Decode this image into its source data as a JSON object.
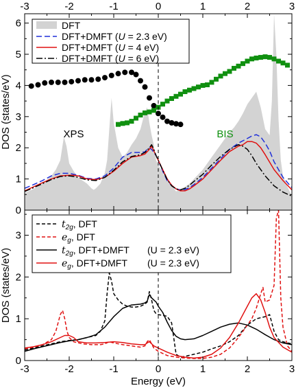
{
  "chart_data": [
    {
      "type": "line",
      "panel": "top",
      "ylabel": "DOS (states/eV)",
      "xlim": [
        -3,
        3
      ],
      "ylim": [
        0,
        6.3
      ],
      "x_ticks": [
        "-3",
        "-2",
        "-1",
        "0",
        "1",
        "2",
        "3"
      ],
      "x_ticks_top": [
        "-3",
        "-2",
        "-1",
        "0",
        "1",
        "2",
        "3"
      ],
      "y_ticks": [
        "0",
        "1",
        "2",
        "3",
        "4",
        "5",
        "6"
      ],
      "legend_position": "top-left",
      "fermi_line_x": 0,
      "annotations": [
        {
          "label": "XPS",
          "x": -1.9,
          "y": 2.45,
          "color": "#000000"
        },
        {
          "label": "BIS",
          "x": 1.5,
          "y": 2.45,
          "color": "#109010"
        }
      ],
      "series": [
        {
          "name": "DFT",
          "kind": "fill",
          "color": "#d3d3d3",
          "x": [
            -3,
            -2.8,
            -2.6,
            -2.4,
            -2.3,
            -2.2,
            -2.12,
            -2.06,
            -2.0,
            -1.9,
            -1.8,
            -1.7,
            -1.6,
            -1.5,
            -1.45,
            -1.4,
            -1.3,
            -1.2,
            -1.15,
            -1.1,
            -1.05,
            -1.0,
            -0.9,
            -0.8,
            -0.7,
            -0.6,
            -0.5,
            -0.4,
            -0.3,
            -0.25,
            -0.2,
            -0.15,
            -0.1,
            -0.05,
            0.0,
            0.1,
            0.2,
            0.3,
            0.4,
            0.5,
            0.6,
            0.7,
            0.8,
            0.9,
            1.0,
            1.1,
            1.2,
            1.3,
            1.4,
            1.5,
            1.6,
            1.7,
            1.8,
            1.9,
            2.0,
            2.1,
            2.2,
            2.3,
            2.4,
            2.5,
            2.55,
            2.6,
            2.65,
            2.7,
            2.75,
            2.8,
            2.9,
            3.0
          ],
          "y": [
            0.55,
            0.68,
            0.85,
            1.1,
            1.3,
            1.6,
            2.35,
            2.05,
            1.5,
            1.25,
            1.05,
            0.95,
            0.85,
            0.7,
            0.65,
            0.7,
            0.85,
            1.2,
            1.6,
            2.6,
            3.6,
            2.8,
            2.0,
            1.7,
            1.85,
            2.1,
            2.3,
            2.6,
            3.15,
            3.3,
            2.8,
            2.4,
            2.1,
            1.6,
            1.45,
            1.2,
            0.95,
            0.8,
            0.6,
            0.68,
            0.75,
            0.85,
            1.0,
            1.15,
            1.3,
            1.5,
            1.7,
            1.9,
            2.1,
            2.3,
            2.5,
            2.65,
            2.85,
            3.1,
            3.4,
            3.6,
            3.8,
            3.3,
            2.6,
            2.4,
            3.5,
            6.3,
            5.0,
            2.9,
            1.6,
            1.1,
            0.75,
            0.45
          ]
        },
        {
          "name": "DFT+DMFT (U = 2.3 eV)",
          "kind": "line",
          "dash": "8,4",
          "color": "#1f2fd8",
          "x": [
            -3,
            -2.8,
            -2.6,
            -2.4,
            -2.2,
            -2.0,
            -1.9,
            -1.8,
            -1.6,
            -1.4,
            -1.2,
            -1.0,
            -0.8,
            -0.6,
            -0.4,
            -0.3,
            -0.25,
            -0.2,
            -0.15,
            -0.1,
            -0.05,
            0.0,
            0.1,
            0.2,
            0.3,
            0.4,
            0.5,
            0.6,
            0.7,
            0.8,
            1.0,
            1.2,
            1.4,
            1.6,
            1.8,
            2.0,
            2.1,
            2.2,
            2.3,
            2.4,
            2.5,
            2.6,
            2.8,
            3.0
          ],
          "y": [
            0.7,
            0.82,
            0.95,
            1.1,
            1.18,
            1.18,
            1.15,
            1.12,
            1.02,
            1.0,
            1.1,
            1.35,
            1.7,
            1.85,
            1.85,
            1.87,
            1.95,
            2.0,
            1.95,
            1.85,
            1.75,
            1.6,
            1.25,
            0.95,
            0.8,
            0.68,
            0.65,
            0.66,
            0.72,
            0.82,
            1.05,
            1.35,
            1.65,
            1.95,
            2.15,
            2.3,
            2.38,
            2.42,
            2.35,
            2.15,
            1.9,
            1.55,
            1.05,
            0.72
          ]
        },
        {
          "name": "DFT+DMFT (U = 4 eV)",
          "kind": "line",
          "dash": "",
          "color": "#e01010",
          "x": [
            -3,
            -2.8,
            -2.6,
            -2.4,
            -2.2,
            -2.0,
            -1.9,
            -1.8,
            -1.6,
            -1.4,
            -1.2,
            -1.0,
            -0.8,
            -0.6,
            -0.4,
            -0.3,
            -0.2,
            -0.15,
            -0.1,
            -0.05,
            0.0,
            0.1,
            0.2,
            0.3,
            0.4,
            0.5,
            0.6,
            0.7,
            0.8,
            1.0,
            1.2,
            1.4,
            1.6,
            1.8,
            1.9,
            2.0,
            2.1,
            2.2,
            2.3,
            2.4,
            2.6,
            2.8,
            3.0
          ],
          "y": [
            0.62,
            0.75,
            0.88,
            1.0,
            1.1,
            1.12,
            1.12,
            1.1,
            1.0,
            0.98,
            1.05,
            1.25,
            1.5,
            1.7,
            1.75,
            1.8,
            1.95,
            2.05,
            1.9,
            1.75,
            1.6,
            1.3,
            1.0,
            0.8,
            0.68,
            0.62,
            0.62,
            0.68,
            0.78,
            1.0,
            1.3,
            1.6,
            1.88,
            2.05,
            2.1,
            2.2,
            2.2,
            2.15,
            2.0,
            1.78,
            1.3,
            0.95,
            0.65
          ]
        },
        {
          "name": "DFT+DMFT (U = 6 eV)",
          "kind": "line",
          "dash": "9,3,2,3",
          "color": "#000000",
          "x": [
            -3,
            -2.8,
            -2.6,
            -2.4,
            -2.2,
            -2.0,
            -1.9,
            -1.8,
            -1.6,
            -1.4,
            -1.2,
            -1.0,
            -0.8,
            -0.6,
            -0.4,
            -0.3,
            -0.2,
            -0.15,
            -0.1,
            -0.05,
            0.0,
            0.1,
            0.2,
            0.3,
            0.4,
            0.5,
            0.6,
            0.7,
            0.8,
            1.0,
            1.2,
            1.4,
            1.6,
            1.8,
            1.9,
            2.0,
            2.1,
            2.2,
            2.4,
            2.6,
            2.8,
            3.0
          ],
          "y": [
            0.6,
            0.72,
            0.85,
            0.98,
            1.08,
            1.1,
            1.08,
            1.05,
            0.97,
            0.95,
            1.05,
            1.28,
            1.55,
            1.72,
            1.78,
            1.85,
            2.0,
            2.1,
            1.95,
            1.75,
            1.6,
            1.28,
            0.98,
            0.78,
            0.68,
            0.65,
            0.7,
            0.8,
            0.92,
            1.15,
            1.45,
            1.72,
            1.95,
            2.1,
            2.05,
            1.95,
            1.75,
            1.5,
            1.1,
            0.78,
            0.58,
            0.45
          ]
        },
        {
          "name": "XPS",
          "kind": "markers",
          "marker": "circle",
          "color": "#000000",
          "x": [
            -2.85,
            -2.7,
            -2.55,
            -2.4,
            -2.25,
            -2.1,
            -1.95,
            -1.8,
            -1.65,
            -1.5,
            -1.35,
            -1.2,
            -1.05,
            -0.9,
            -0.75,
            -0.6,
            -0.5,
            -0.4,
            -0.3,
            -0.2,
            -0.1,
            0.0,
            0.1,
            0.2,
            0.3,
            0.4,
            0.5
          ],
          "y": [
            3.98,
            4.02,
            4.08,
            4.1,
            4.1,
            4.1,
            4.12,
            4.15,
            4.18,
            4.18,
            4.2,
            4.25,
            4.32,
            4.38,
            4.42,
            4.42,
            4.35,
            4.15,
            3.95,
            3.6,
            3.35,
            3.1,
            2.98,
            2.85,
            2.8,
            2.77,
            2.75
          ]
        },
        {
          "name": "BIS",
          "kind": "markers",
          "marker": "square",
          "color": "#109010",
          "x": [
            -0.9,
            -0.8,
            -0.7,
            -0.6,
            -0.5,
            -0.4,
            -0.3,
            -0.2,
            -0.1,
            0.0,
            0.1,
            0.2,
            0.3,
            0.4,
            0.5,
            0.6,
            0.7,
            0.8,
            0.9,
            1.0,
            1.1,
            1.2,
            1.3,
            1.4,
            1.5,
            1.6,
            1.7,
            1.8,
            1.9,
            2.0,
            2.1,
            2.2,
            2.3,
            2.4,
            2.5,
            2.6,
            2.7,
            2.8,
            2.9
          ],
          "y": [
            2.75,
            2.78,
            2.8,
            2.85,
            2.95,
            3.05,
            3.12,
            3.15,
            3.2,
            3.3,
            3.4,
            3.5,
            3.58,
            3.65,
            3.72,
            3.8,
            3.85,
            3.9,
            3.95,
            4.0,
            4.02,
            4.1,
            4.2,
            4.3,
            4.38,
            4.45,
            4.55,
            4.62,
            4.7,
            4.78,
            4.85,
            4.88,
            4.9,
            4.92,
            4.9,
            4.85,
            4.78,
            4.72,
            4.65
          ]
        }
      ]
    },
    {
      "type": "line",
      "panel": "bottom",
      "xlabel": "Energy (eV)",
      "ylabel": "DOS (states/eV)",
      "xlim": [
        -3,
        3
      ],
      "ylim": [
        0,
        3.6
      ],
      "x_ticks": [
        "-3",
        "-2",
        "-1",
        "0",
        "1",
        "2",
        "3"
      ],
      "y_ticks": [
        "0",
        "1",
        "2",
        "3"
      ],
      "legend_position": "top-left",
      "fermi_line_x": 0,
      "legend": [
        {
          "symbol": "t",
          "subscript": "2g",
          "text": ", DFT",
          "color": "#000000",
          "dash": "5,3"
        },
        {
          "symbol": "e",
          "subscript": "g",
          "text": ", DFT",
          "color": "#e01010",
          "dash": "5,3"
        },
        {
          "symbol": "t",
          "subscript": "2g",
          "text": ", DFT+DMFT",
          "param": "(U = 2.3 eV)",
          "color": "#000000",
          "dash": ""
        },
        {
          "symbol": "e",
          "subscript": "g",
          "text": ", DFT+DMFT",
          "param": "(U = 2.3 eV)",
          "color": "#e01010",
          "dash": ""
        }
      ],
      "series": [
        {
          "name": "t2g, DFT",
          "dash": "5,3",
          "color": "#000000",
          "x": [
            -3,
            -2.8,
            -2.6,
            -2.4,
            -2.2,
            -2.0,
            -1.8,
            -1.6,
            -1.4,
            -1.3,
            -1.2,
            -1.15,
            -1.1,
            -1.05,
            -1.0,
            -0.9,
            -0.8,
            -0.7,
            -0.6,
            -0.5,
            -0.4,
            -0.3,
            -0.25,
            -0.2,
            -0.15,
            -0.1,
            -0.05,
            0.0,
            0.1,
            0.2,
            0.3,
            0.4,
            0.5,
            0.6,
            0.8,
            1.0,
            1.2,
            1.4,
            1.6,
            1.8,
            2.0,
            2.2,
            2.4,
            2.5,
            2.6,
            2.7,
            2.8,
            2.9,
            3.0
          ],
          "y": [
            0.25,
            0.3,
            0.35,
            0.4,
            0.45,
            0.48,
            0.5,
            0.55,
            0.6,
            0.7,
            0.95,
            1.6,
            2.1,
            1.9,
            1.6,
            1.45,
            1.35,
            1.3,
            1.28,
            1.28,
            1.3,
            1.35,
            1.4,
            1.65,
            1.45,
            1.2,
            1.12,
            1.1,
            1.08,
            1.06,
            0.9,
            0.15,
            0.08,
            0.1,
            0.15,
            0.2,
            0.28,
            0.35,
            0.45,
            0.6,
            0.85,
            1.0,
            1.05,
            1.1,
            0.7,
            0.5,
            0.45,
            0.42,
            0.4
          ]
        },
        {
          "name": "eg, DFT",
          "dash": "5,3",
          "color": "#e01010",
          "x": [
            -3,
            -2.8,
            -2.6,
            -2.4,
            -2.3,
            -2.2,
            -2.15,
            -2.1,
            -2.05,
            -2.0,
            -1.9,
            -1.7,
            -1.5,
            -1.3,
            -1.2,
            -1.1,
            -1.0,
            -0.8,
            -0.6,
            -0.4,
            -0.3,
            -0.25,
            -0.2,
            -0.1,
            0.0,
            0.2,
            0.4,
            0.6,
            0.8,
            1.0,
            1.2,
            1.4,
            1.6,
            1.8,
            2.0,
            2.1,
            2.2,
            2.3,
            2.35,
            2.4,
            2.5,
            2.6,
            2.65,
            2.7,
            2.75,
            2.8,
            2.9,
            3.0
          ],
          "y": [
            0.28,
            0.32,
            0.38,
            0.5,
            0.7,
            1.1,
            1.2,
            1.0,
            0.7,
            0.55,
            0.45,
            0.4,
            0.38,
            0.38,
            0.4,
            0.45,
            0.42,
            0.38,
            0.35,
            0.32,
            0.35,
            0.45,
            0.5,
            0.3,
            0.22,
            0.12,
            0.08,
            0.06,
            0.05,
            0.05,
            0.08,
            0.15,
            0.3,
            0.55,
            0.85,
            1.0,
            1.25,
            1.6,
            1.75,
            1.4,
            1.45,
            1.8,
            3.4,
            3.6,
            1.5,
            0.8,
            0.35,
            0.22
          ]
        },
        {
          "name": "t2g, DFT+DMFT (U = 2.3 eV)",
          "dash": "",
          "color": "#000000",
          "x": [
            -3,
            -2.8,
            -2.6,
            -2.4,
            -2.2,
            -2.0,
            -1.8,
            -1.6,
            -1.4,
            -1.2,
            -1.0,
            -0.8,
            -0.6,
            -0.4,
            -0.3,
            -0.25,
            -0.2,
            -0.15,
            -0.1,
            -0.05,
            0.0,
            0.1,
            0.2,
            0.3,
            0.4,
            0.5,
            0.6,
            0.8,
            1.0,
            1.2,
            1.4,
            1.6,
            1.8,
            2.0,
            2.2,
            2.4,
            2.6,
            2.8,
            3.0
          ],
          "y": [
            0.22,
            0.28,
            0.33,
            0.38,
            0.43,
            0.47,
            0.5,
            0.55,
            0.62,
            0.8,
            1.05,
            1.25,
            1.33,
            1.35,
            1.38,
            1.42,
            1.58,
            1.5,
            1.45,
            1.4,
            1.3,
            1.15,
            0.92,
            0.72,
            0.58,
            0.52,
            0.5,
            0.52,
            0.6,
            0.7,
            0.8,
            0.87,
            0.9,
            0.85,
            0.75,
            0.62,
            0.5,
            0.42,
            0.38
          ]
        },
        {
          "name": "eg, DFT+DMFT (U = 2.3 eV)",
          "dash": "",
          "color": "#e01010",
          "x": [
            -3,
            -2.8,
            -2.6,
            -2.4,
            -2.2,
            -2.1,
            -2.0,
            -1.9,
            -1.8,
            -1.6,
            -1.4,
            -1.2,
            -1.0,
            -0.8,
            -0.6,
            -0.4,
            -0.3,
            -0.25,
            -0.2,
            -0.15,
            -0.1,
            0.0,
            0.2,
            0.4,
            0.6,
            0.8,
            1.0,
            1.2,
            1.4,
            1.6,
            1.8,
            2.0,
            2.1,
            2.2,
            2.3,
            2.4,
            2.5,
            2.6,
            2.8,
            3.0
          ],
          "y": [
            0.3,
            0.33,
            0.38,
            0.45,
            0.55,
            0.6,
            0.6,
            0.55,
            0.45,
            0.42,
            0.42,
            0.43,
            0.45,
            0.43,
            0.4,
            0.38,
            0.38,
            0.42,
            0.45,
            0.4,
            0.35,
            0.3,
            0.2,
            0.12,
            0.08,
            0.06,
            0.08,
            0.15,
            0.3,
            0.55,
            0.9,
            1.3,
            1.5,
            1.6,
            1.45,
            1.15,
            0.8,
            0.55,
            0.32,
            0.2
          ]
        }
      ]
    }
  ],
  "top_legend": [
    {
      "kind": "fill",
      "label": "DFT",
      "color": "#d3d3d3"
    },
    {
      "kind": "line",
      "label": "DFT+DMFT (",
      "var": "U",
      "rest": " = 2.3 eV)",
      "color": "#1f2fd8",
      "dash": "8,4"
    },
    {
      "kind": "line",
      "label": "DFT+DMFT (",
      "var": "U",
      "rest": " = 4 eV)",
      "color": "#e01010",
      "dash": ""
    },
    {
      "kind": "line",
      "label": "DFT+DMFT (",
      "var": "U",
      "rest": " = 6 eV)",
      "color": "#000000",
      "dash": "9,3,2,3"
    }
  ]
}
